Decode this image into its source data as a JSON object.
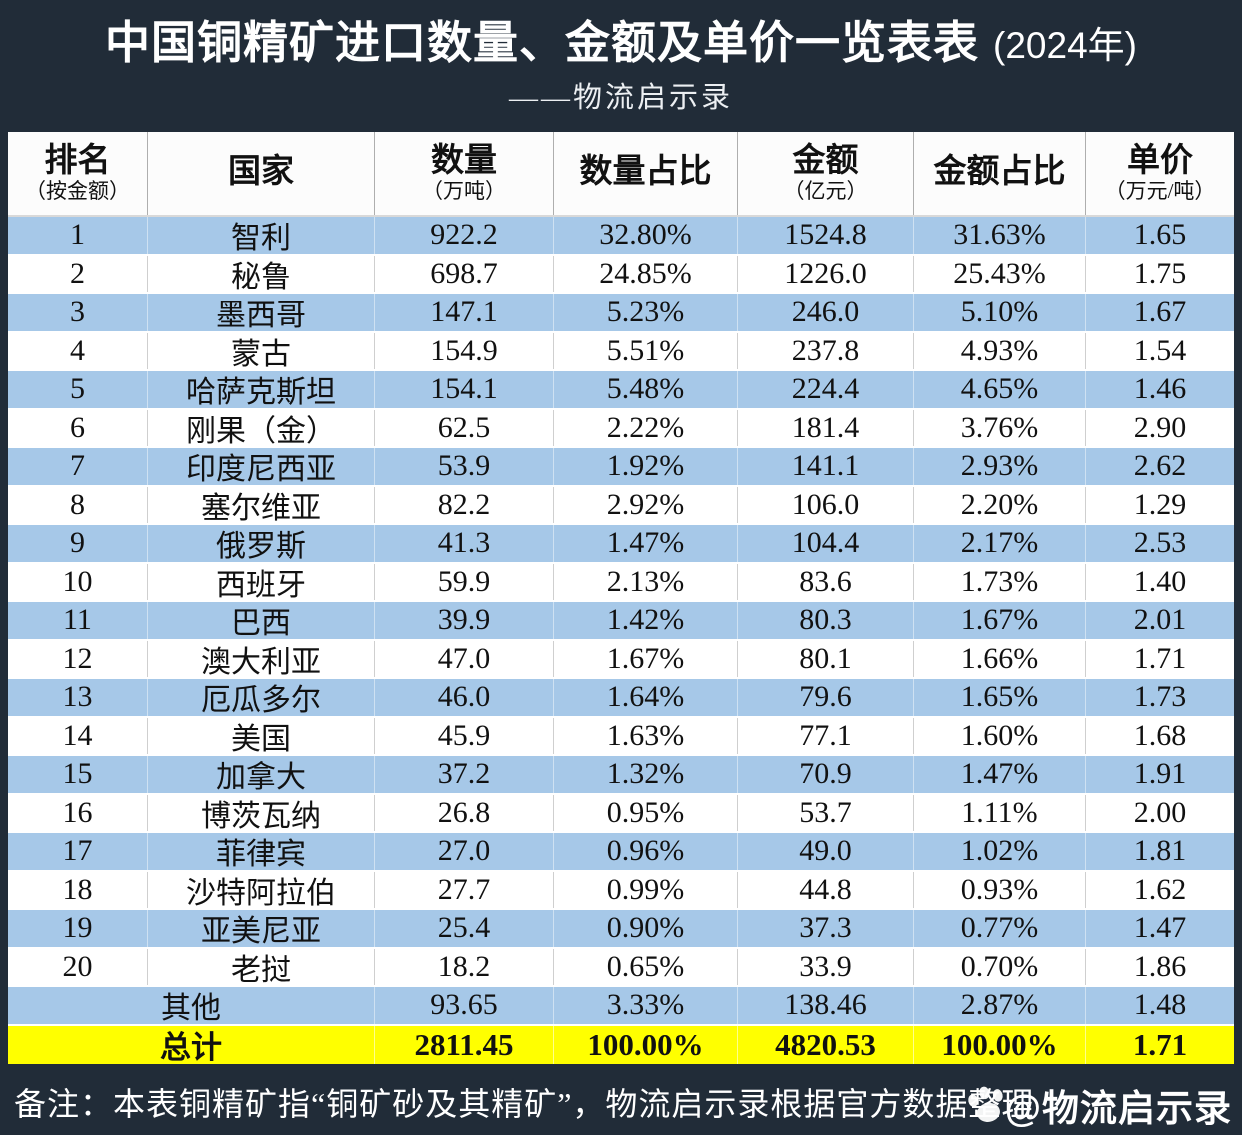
{
  "header": {
    "title": "中国铜精矿进口数量、金额及单价一览表表",
    "title_suffix": "(2024年)",
    "subtitle": "——物流启示录"
  },
  "table": {
    "columns": [
      {
        "label": "排名",
        "sub": "（按金额）"
      },
      {
        "label": "国家",
        "sub": ""
      },
      {
        "label": "数量",
        "sub": "（万吨）"
      },
      {
        "label": "数量占比",
        "sub": ""
      },
      {
        "label": "金额",
        "sub": "（亿元）"
      },
      {
        "label": "金额占比",
        "sub": ""
      },
      {
        "label": "单价",
        "sub": "（万元/吨）"
      }
    ]
  },
  "footer": {
    "note": "备注：本表铜精矿指“铜矿砂及其精矿”，物流启示录根据官方数据整理",
    "watermark": "@物流启示录"
  },
  "colors": {
    "dark_background": "#212c38",
    "row_blue": "#a6c8e8",
    "row_white": "#ffffff",
    "total_row_yellow": "#ffff00",
    "title_text": "#ffffff"
  },
  "chart_data": {
    "type": "table",
    "title": "中国铜精矿进口数量、金额及单价一览表表(2024年)",
    "subtitle": "——物流启示录",
    "columns": [
      "排名（按金额）",
      "国家",
      "数量（万吨）",
      "数量占比",
      "金额（亿元）",
      "金额占比",
      "单价（万元/吨）"
    ],
    "rows": [
      [
        "1",
        "智利",
        "922.2",
        "32.80%",
        "1524.8",
        "31.63%",
        "1.65"
      ],
      [
        "2",
        "秘鲁",
        "698.7",
        "24.85%",
        "1226.0",
        "25.43%",
        "1.75"
      ],
      [
        "3",
        "墨西哥",
        "147.1",
        "5.23%",
        "246.0",
        "5.10%",
        "1.67"
      ],
      [
        "4",
        "蒙古",
        "154.9",
        "5.51%",
        "237.8",
        "4.93%",
        "1.54"
      ],
      [
        "5",
        "哈萨克斯坦",
        "154.1",
        "5.48%",
        "224.4",
        "4.65%",
        "1.46"
      ],
      [
        "6",
        "刚果（金）",
        "62.5",
        "2.22%",
        "181.4",
        "3.76%",
        "2.90"
      ],
      [
        "7",
        "印度尼西亚",
        "53.9",
        "1.92%",
        "141.1",
        "2.93%",
        "2.62"
      ],
      [
        "8",
        "塞尔维亚",
        "82.2",
        "2.92%",
        "106.0",
        "2.20%",
        "1.29"
      ],
      [
        "9",
        "俄罗斯",
        "41.3",
        "1.47%",
        "104.4",
        "2.17%",
        "2.53"
      ],
      [
        "10",
        "西班牙",
        "59.9",
        "2.13%",
        "83.6",
        "1.73%",
        "1.40"
      ],
      [
        "11",
        "巴西",
        "39.9",
        "1.42%",
        "80.3",
        "1.67%",
        "2.01"
      ],
      [
        "12",
        "澳大利亚",
        "47.0",
        "1.67%",
        "80.1",
        "1.66%",
        "1.71"
      ],
      [
        "13",
        "厄瓜多尔",
        "46.0",
        "1.64%",
        "79.6",
        "1.65%",
        "1.73"
      ],
      [
        "14",
        "美国",
        "45.9",
        "1.63%",
        "77.1",
        "1.60%",
        "1.68"
      ],
      [
        "15",
        "加拿大",
        "37.2",
        "1.32%",
        "70.9",
        "1.47%",
        "1.91"
      ],
      [
        "16",
        "博茨瓦纳",
        "26.8",
        "0.95%",
        "53.7",
        "1.11%",
        "2.00"
      ],
      [
        "17",
        "菲律宾",
        "27.0",
        "0.96%",
        "49.0",
        "1.02%",
        "1.81"
      ],
      [
        "18",
        "沙特阿拉伯",
        "27.7",
        "0.99%",
        "44.8",
        "0.93%",
        "1.62"
      ],
      [
        "19",
        "亚美尼亚",
        "25.4",
        "0.90%",
        "37.3",
        "0.77%",
        "1.47"
      ],
      [
        "20",
        "老挝",
        "18.2",
        "0.65%",
        "33.9",
        "0.70%",
        "1.86"
      ],
      [
        "",
        "其他",
        "93.65",
        "3.33%",
        "138.46",
        "2.87%",
        "1.48"
      ],
      [
        "",
        "总计",
        "2811.45",
        "100.00%",
        "4820.53",
        "100.00%",
        "1.71"
      ]
    ]
  }
}
